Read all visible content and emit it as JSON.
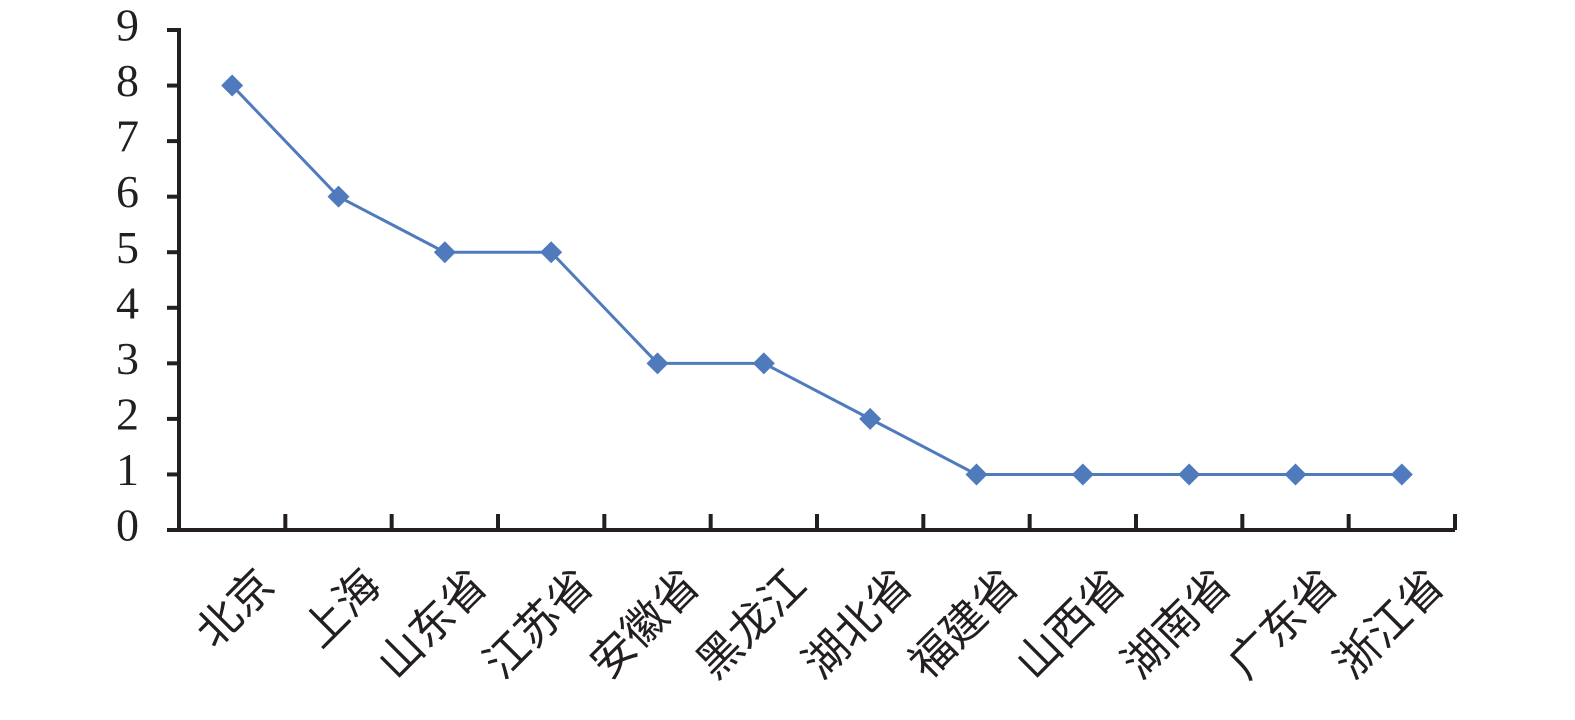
{
  "chart_data": {
    "type": "line",
    "categories": [
      "北京",
      "上海",
      "山东省",
      "江苏省",
      "安徽省",
      "黑龙江",
      "湖北省",
      "福建省",
      "山西省",
      "湖南省",
      "广东省",
      "浙江省"
    ],
    "values": [
      8,
      6,
      5,
      5,
      3,
      3,
      2,
      1,
      1,
      1,
      1,
      1
    ],
    "color": "#4f7bbd",
    "ylim": [
      0,
      9
    ],
    "yticks": [
      0,
      1,
      2,
      3,
      4,
      5,
      6,
      7,
      8,
      9
    ],
    "grid": false
  }
}
